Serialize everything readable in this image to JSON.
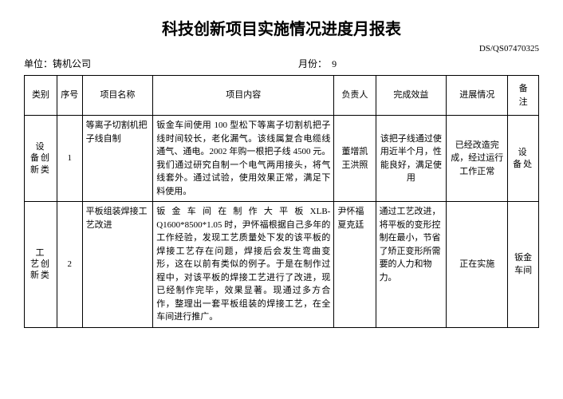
{
  "title": "科技创新项目实施情况进度月报表",
  "doc_id": "DS/QS07470325",
  "unit_prefix": "单位：",
  "unit_value": "铸机公司",
  "month_prefix": "月份：",
  "month_value": "9",
  "columns": {
    "category": "类别",
    "seq": "序号",
    "name": "项目名称",
    "content": "项目内容",
    "owner": "负责人",
    "effect": "完成效益",
    "progress": "进展情况",
    "note": "备　注"
  },
  "rows": [
    {
      "category": "设　备创　新类",
      "seq": "1",
      "name": "等离子切割机把子线自制",
      "content": "钣金车间使用 100 型松下等离子切割机把子线时间较长，老化漏气。该线属复合电缆线通气、通电。2002 年购一根把子线 4500 元。我们通过研究自制一个电气两用接头，将气线套外。通过试验，使用效果正常，满足下料使用。",
      "owner": "董增凯王洪照",
      "effect": "该把子线通过使用近半个月，性能良好，满足使用",
      "progress": "已经改造完成，经过运行工作正常",
      "note": "设　备处"
    },
    {
      "category": "工　艺创　新类",
      "seq": "2",
      "name": "平板组装焊接工艺改进",
      "content": "钣 金 车 间 在 制 作 大 平 板 XLB-Q1600*8500*1.05 时，尹怀福根据自己多年的工作经验，发现工艺质量处下发的该平板的焊接工艺存在问题，焊接后会发生弯曲变形，这在以前有类似的例子。于是在制作过程中，对该平板的焊接工艺进行了改进，现已经制作完毕，效果显著。现通过多方合作，整理出一套平板组装的焊接工艺，在全车间进行推广。",
      "owner": "尹怀福夏克廷",
      "effect": "通过工艺改进，将平板的变形控制在最小，节省了矫正变形所需要的人力和物力。",
      "progress": "正在实施",
      "note": "钣金车间"
    }
  ]
}
